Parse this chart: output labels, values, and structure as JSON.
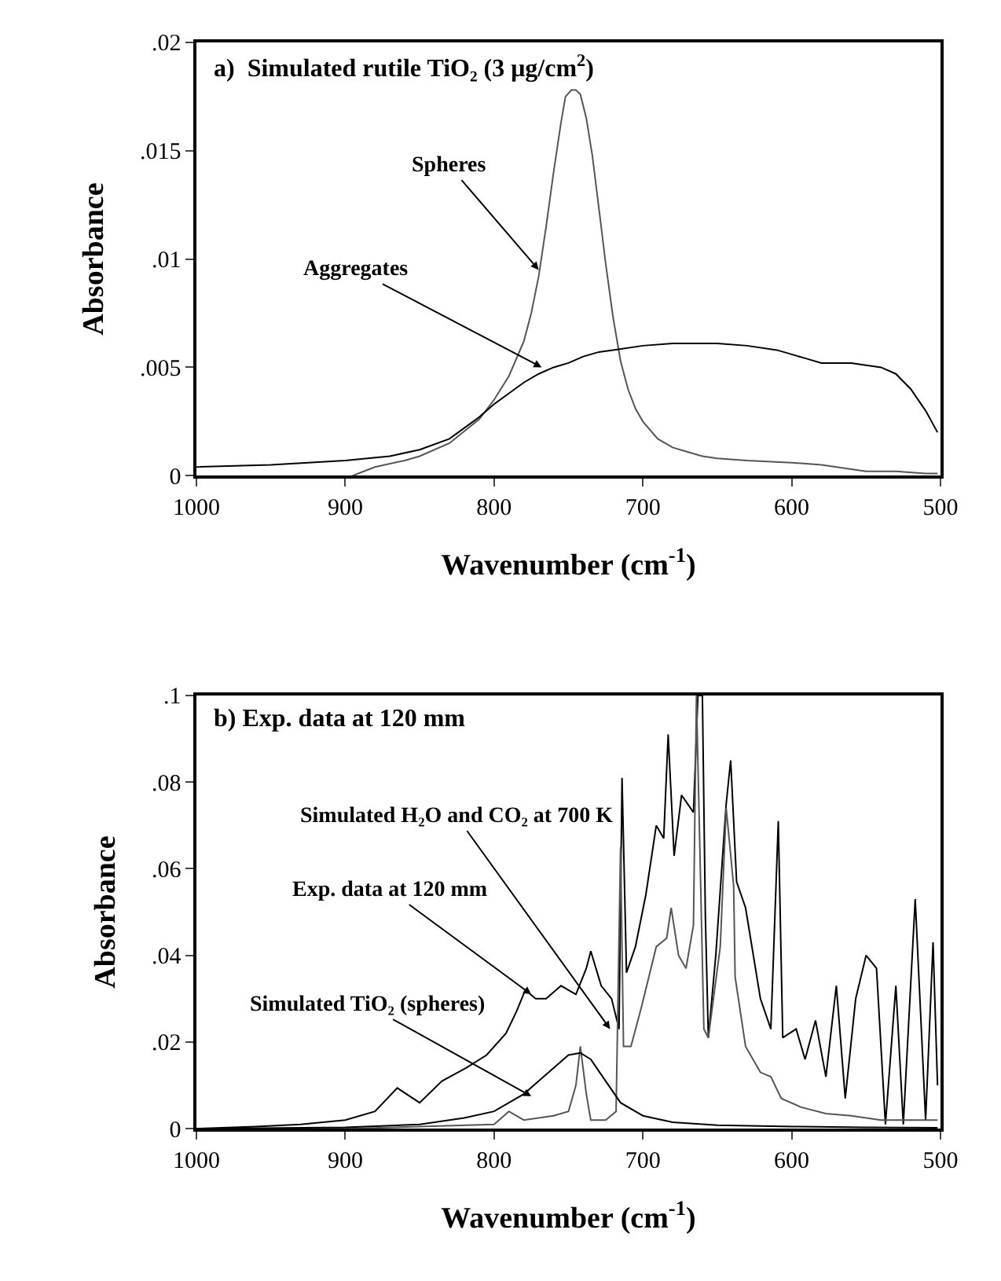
{
  "chart_data": [
    {
      "type": "line",
      "title": "a)  Simulated rutile TiO₂ (3 μg/cm$^{2}$)",
      "xlabel": "Wavenumber (cm$^{-1}$)",
      "ylabel": "Absorbance",
      "xlim": [
        1000,
        500
      ],
      "xticks": [
        1000,
        900,
        800,
        700,
        600,
        500
      ],
      "ylim": [
        0,
        0.02
      ],
      "yticks": [
        0,
        {
          "value": 0.005,
          "label": ".005"
        },
        {
          "value": 0.01,
          "label": ".01"
        },
        {
          "value": 0.015,
          "label": ".015"
        },
        {
          "value": 0.02,
          "label": ".02"
        }
      ],
      "series": [
        {
          "color": "#555555",
          "x": [
            895,
            880,
            860,
            850,
            830,
            810,
            800,
            790,
            780,
            775,
            770,
            765,
            760,
            755,
            752,
            748,
            745,
            742,
            738,
            734,
            730,
            725,
            720,
            715,
            710,
            705,
            700,
            690,
            680,
            670,
            660,
            650,
            630,
            600,
            580,
            560,
            550,
            530,
            510,
            502
          ],
          "values": [
            0,
            0.0004,
            0.0007,
            0.0009,
            0.0015,
            0.0026,
            0.0035,
            0.0046,
            0.0062,
            0.0075,
            0.0092,
            0.0115,
            0.014,
            0.0163,
            0.0175,
            0.0178,
            0.0178,
            0.0176,
            0.0165,
            0.0148,
            0.0126,
            0.0098,
            0.0073,
            0.0053,
            0.004,
            0.0031,
            0.0025,
            0.0017,
            0.0013,
            0.0011,
            0.0009,
            0.0008,
            0.0007,
            0.0006,
            0.0005,
            0.0003,
            0.0002,
            0.0002,
            0.0001,
            0.0001
          ]
        },
        {
          "color": "#000000",
          "x": [
            1000,
            950,
            900,
            870,
            850,
            830,
            820,
            810,
            800,
            790,
            780,
            770,
            760,
            750,
            740,
            730,
            720,
            700,
            680,
            670,
            650,
            630,
            610,
            600,
            590,
            580,
            570,
            560,
            550,
            540,
            530,
            520,
            510,
            502
          ],
          "values": [
            0.0004,
            0.0005,
            0.0007,
            0.0009,
            0.0012,
            0.0017,
            0.0022,
            0.0027,
            0.0033,
            0.0038,
            0.0043,
            0.0047,
            0.005,
            0.0052,
            0.0055,
            0.0057,
            0.0058,
            0.006,
            0.0061,
            0.0061,
            0.0061,
            0.006,
            0.0058,
            0.0056,
            0.0054,
            0.0052,
            0.0052,
            0.0052,
            0.0051,
            0.005,
            0.0047,
            0.004,
            0.003,
            0.002
          ]
        }
      ],
      "annotations": [
        {
          "text": "Spheres",
          "x": 770,
          "y": 0.0095
        },
        {
          "text": "Aggregates",
          "x": 768,
          "y": 0.005
        }
      ]
    },
    {
      "type": "line",
      "title": "b) Exp. data at 120 mm",
      "xlabel": "Wavenumber (cm$^{-1}$)",
      "ylabel": "Absorbance",
      "xlim": [
        1000,
        500
      ],
      "xticks": [
        1000,
        900,
        800,
        700,
        600,
        500
      ],
      "ylim": [
        0,
        0.1
      ],
      "yticks": [
        0,
        {
          "value": 0.02,
          "label": ".02"
        },
        {
          "value": 0.04,
          "label": ".04"
        },
        {
          "value": 0.06,
          "label": ".06"
        },
        {
          "value": 0.08,
          "label": ".08"
        },
        {
          "value": 0.1,
          "label": ".1"
        }
      ],
      "series": [
        {
          "color": "#000000",
          "x": [
            1000,
            960,
            930,
            900,
            880,
            865,
            850,
            835,
            819,
            805,
            792,
            785,
            779,
            772,
            765,
            755,
            745,
            738,
            735,
            728,
            721,
            716,
            714,
            711,
            705,
            698,
            691,
            686,
            683,
            679,
            674,
            666,
            663,
            660,
            658,
            656,
            651,
            644,
            641,
            637,
            631,
            621,
            614,
            609,
            606,
            597,
            591,
            584,
            577,
            570,
            564,
            557,
            550,
            543,
            537,
            530,
            525,
            517,
            510,
            505,
            502
          ],
          "values": [
            0,
            0.0005,
            0.001,
            0.002,
            0.004,
            0.0094,
            0.006,
            0.011,
            0.014,
            0.017,
            0.022,
            0.027,
            0.032,
            0.03,
            0.03,
            0.033,
            0.031,
            0.037,
            0.041,
            0.033,
            0.03,
            0.023,
            0.081,
            0.036,
            0.042,
            0.054,
            0.07,
            0.067,
            0.091,
            0.063,
            0.077,
            0.073,
            0.1,
            0.1,
            0.049,
            0.021,
            0.04,
            0.075,
            0.085,
            0.057,
            0.051,
            0.03,
            0.023,
            0.071,
            0.021,
            0.023,
            0.016,
            0.025,
            0.012,
            0.033,
            0.007,
            0.03,
            0.04,
            0.037,
            0.001,
            0.033,
            0.001,
            0.053,
            0.002,
            0.043,
            0.01
          ]
        },
        {
          "color": "#555555",
          "x": [
            1000,
            900,
            850,
            800,
            790,
            780,
            760,
            750,
            745,
            742,
            738,
            735,
            725,
            718,
            715,
            713,
            708,
            701,
            691,
            684,
            681,
            676,
            671,
            666,
            664,
            659,
            656,
            648,
            644,
            639,
            638,
            631,
            621,
            614,
            607,
            594,
            577,
            560,
            540,
            520,
            502
          ],
          "values": [
            0,
            0,
            0.0005,
            0.001,
            0.004,
            0.002,
            0.003,
            0.004,
            0.01,
            0.019,
            0.008,
            0.002,
            0.002,
            0.004,
            0.065,
            0.019,
            0.019,
            0.028,
            0.042,
            0.044,
            0.051,
            0.04,
            0.037,
            0.047,
            0.1,
            0.023,
            0.021,
            0.042,
            0.074,
            0.056,
            0.035,
            0.019,
            0.013,
            0.012,
            0.007,
            0.005,
            0.0035,
            0.003,
            0.002,
            0.002,
            0.002
          ]
        },
        {
          "color": "#000000",
          "x": [
            1000,
            900,
            850,
            820,
            800,
            780,
            770,
            760,
            750,
            742,
            735,
            725,
            715,
            700,
            680,
            650,
            600,
            550,
            502
          ],
          "values": [
            0,
            0.0003,
            0.001,
            0.0025,
            0.004,
            0.008,
            0.011,
            0.014,
            0.017,
            0.0175,
            0.016,
            0.011,
            0.006,
            0.003,
            0.0015,
            0.0008,
            0.0005,
            0.0003,
            0.0002
          ]
        }
      ],
      "annotations": [
        {
          "text": "Simulated H₂O and CO₂ at 700 K",
          "x": 722,
          "y": 0.023
        },
        {
          "text": "Exp. data at 120 mm",
          "x": 775,
          "y": 0.031
        },
        {
          "text": "Simulated TiO₂ (spheres)",
          "x": 775,
          "y": 0.0075
        }
      ]
    }
  ]
}
